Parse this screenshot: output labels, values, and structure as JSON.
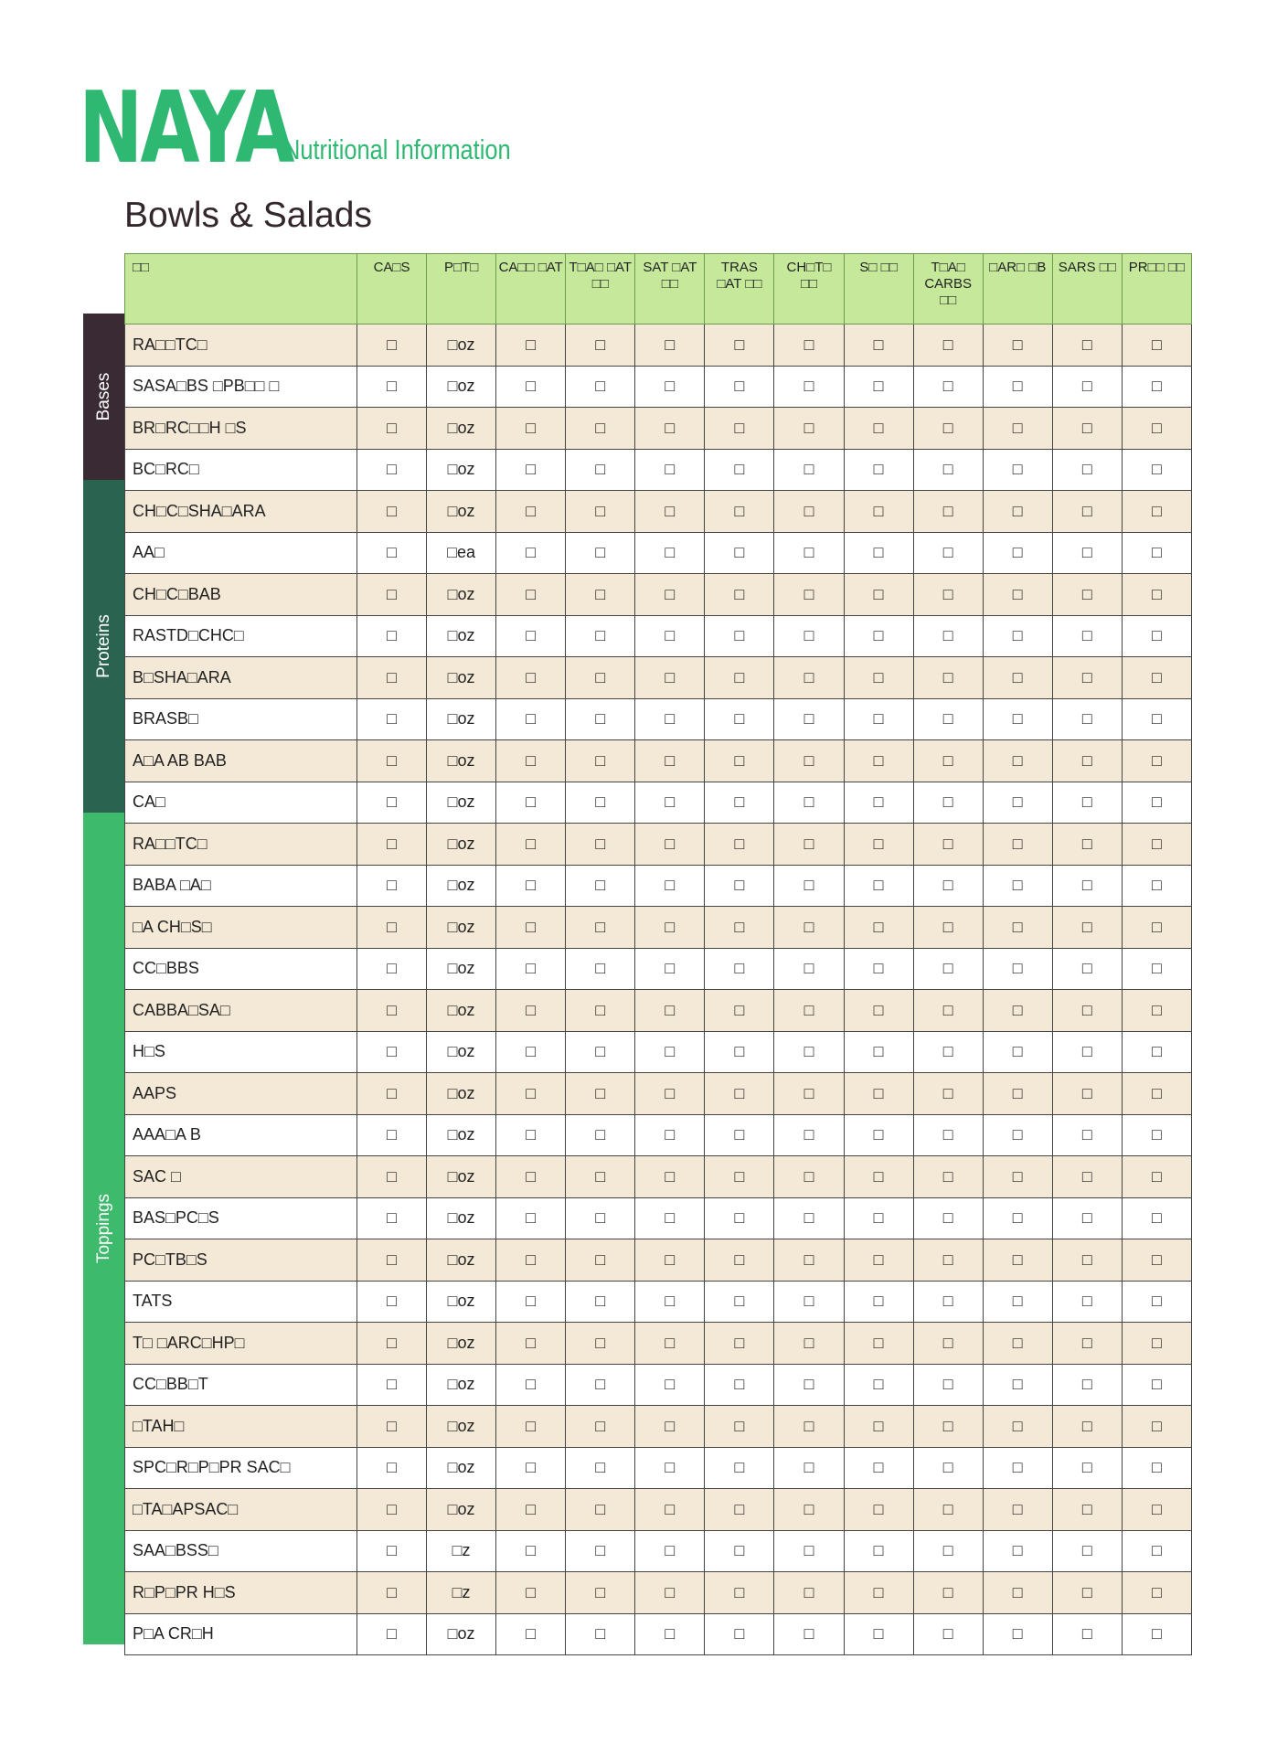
{
  "brand": {
    "logo": "NAYA",
    "subtitle": "Nutritional Information",
    "accent": "#2eb872"
  },
  "title": "Bowls & Salads",
  "headers": [
    "□□",
    "CA□S",
    "P□T□",
    "CA□□ □AT",
    "T□A□ □AT □□",
    "SAT □AT □□",
    "TRAS □AT □□",
    "CH□T□ □□",
    "S□ □□",
    "T□A□ CARBS □□",
    "□AR□ □B",
    "SARS □□",
    "PR□□ □□"
  ],
  "groups": [
    {
      "label": "Bases",
      "color": "#3a2a33",
      "rows": 4
    },
    {
      "label": "Proteins",
      "color": "#2a6350",
      "rows": 8
    },
    {
      "label": "Toppings",
      "color": "#3dba6c",
      "rows": 20
    }
  ],
  "rows": [
    [
      "RA□□TC□",
      "□oz"
    ],
    [
      "SASA□BS □PB□□ □",
      "□oz"
    ],
    [
      "BR□RC□□H □S",
      "□oz"
    ],
    [
      "BC□RC□",
      "□oz"
    ],
    [
      "CH□C□SHA□ARA",
      "□oz"
    ],
    [
      "AA□",
      "□ea"
    ],
    [
      "CH□C□BAB",
      "□oz"
    ],
    [
      "RASTD□CHC□",
      "□oz"
    ],
    [
      "B□SHA□ARA",
      "□oz"
    ],
    [
      "BRASB□",
      "□oz"
    ],
    [
      "A□A AB BAB",
      "□oz"
    ],
    [
      "CA□",
      "□oz"
    ],
    [
      "RA□□TC□",
      "□oz"
    ],
    [
      "BABA □A□",
      "□oz"
    ],
    [
      "□A CH□S□",
      "□oz"
    ],
    [
      "CC□BBS",
      "□oz"
    ],
    [
      "CABBA□SA□",
      "□oz"
    ],
    [
      "H□S",
      "□oz"
    ],
    [
      "AAPS",
      "□oz"
    ],
    [
      "AAA□A B",
      "□oz"
    ],
    [
      "SAC □",
      "□oz"
    ],
    [
      "BAS□PC□S",
      "□oz"
    ],
    [
      "PC□TB□S",
      "□oz"
    ],
    [
      "TATS",
      "□oz"
    ],
    [
      "T□ □ARC□HP□",
      "□oz"
    ],
    [
      "CC□BB□T",
      "□oz"
    ],
    [
      "□TAH□",
      "□oz"
    ],
    [
      "SPC□R□P□PR SAC□",
      "□oz"
    ],
    [
      "□TA□APSAC□",
      "□oz"
    ],
    [
      "SAA□BSS□",
      "□z"
    ],
    [
      "R□P□PR H□S",
      "□z"
    ],
    [
      "P□A CR□H",
      "□oz"
    ]
  ],
  "cell_value": "□"
}
